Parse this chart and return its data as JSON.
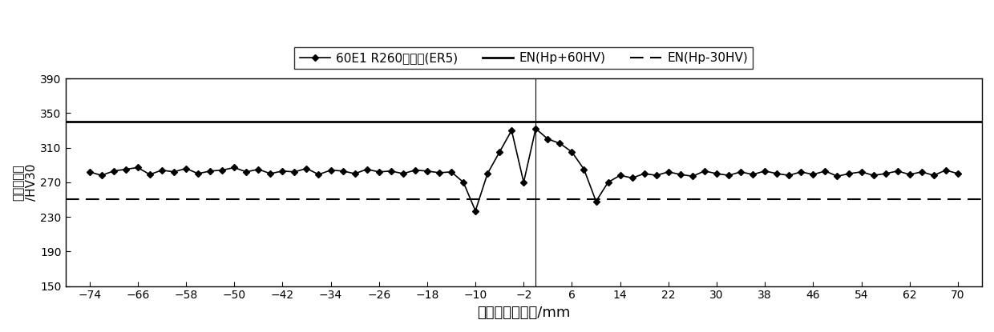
{
  "title": "",
  "xlabel": "距接合线的距离/mm",
  "ylabel": "纵断面硬度\n/HV30",
  "ylim": [
    150,
    390
  ],
  "yticks": [
    150,
    190,
    230,
    270,
    310,
    350,
    390
  ],
  "xticks": [
    -74,
    -66,
    -58,
    -50,
    -42,
    -34,
    -26,
    -18,
    -10,
    -2,
    6,
    14,
    22,
    30,
    38,
    46,
    54,
    62,
    70
  ],
  "xlim": [
    -78,
    74
  ],
  "en_hp_plus": 340,
  "en_hp_minus": 250,
  "legend_labels": [
    "60E1 R260硬度値(ER5)",
    "EN(Hp+60HV)",
    "EN(Hp-30HV)"
  ],
  "line_color": "black",
  "background_color": "white",
  "x_data": [
    -74,
    -72,
    -70,
    -68,
    -66,
    -64,
    -62,
    -60,
    -58,
    -56,
    -54,
    -52,
    -50,
    -48,
    -46,
    -44,
    -42,
    -40,
    -38,
    -36,
    -34,
    -32,
    -30,
    -28,
    -26,
    -24,
    -22,
    -20,
    -18,
    -16,
    -14,
    -12,
    -10,
    -8,
    -6,
    -4,
    -2,
    0,
    2,
    4,
    6,
    8,
    10,
    12,
    14,
    16,
    18,
    20,
    22,
    24,
    26,
    28,
    30,
    32,
    34,
    36,
    38,
    40,
    42,
    44,
    46,
    48,
    50,
    52,
    54,
    56,
    58,
    60,
    62,
    64,
    66,
    68,
    70
  ],
  "y_data": [
    282,
    278,
    283,
    285,
    287,
    279,
    284,
    282,
    286,
    280,
    283,
    284,
    287,
    282,
    285,
    280,
    283,
    282,
    286,
    279,
    284,
    283,
    280,
    285,
    282,
    283,
    280,
    284,
    283,
    281,
    282,
    270,
    237,
    280,
    305,
    330,
    270,
    332,
    320,
    315,
    305,
    285,
    248,
    270,
    278,
    275,
    280,
    278,
    282,
    279,
    277,
    283,
    280,
    278,
    282,
    279,
    283,
    280,
    278,
    282,
    279,
    283,
    277,
    280,
    282,
    278,
    280,
    283,
    279,
    282,
    278,
    284,
    280
  ]
}
